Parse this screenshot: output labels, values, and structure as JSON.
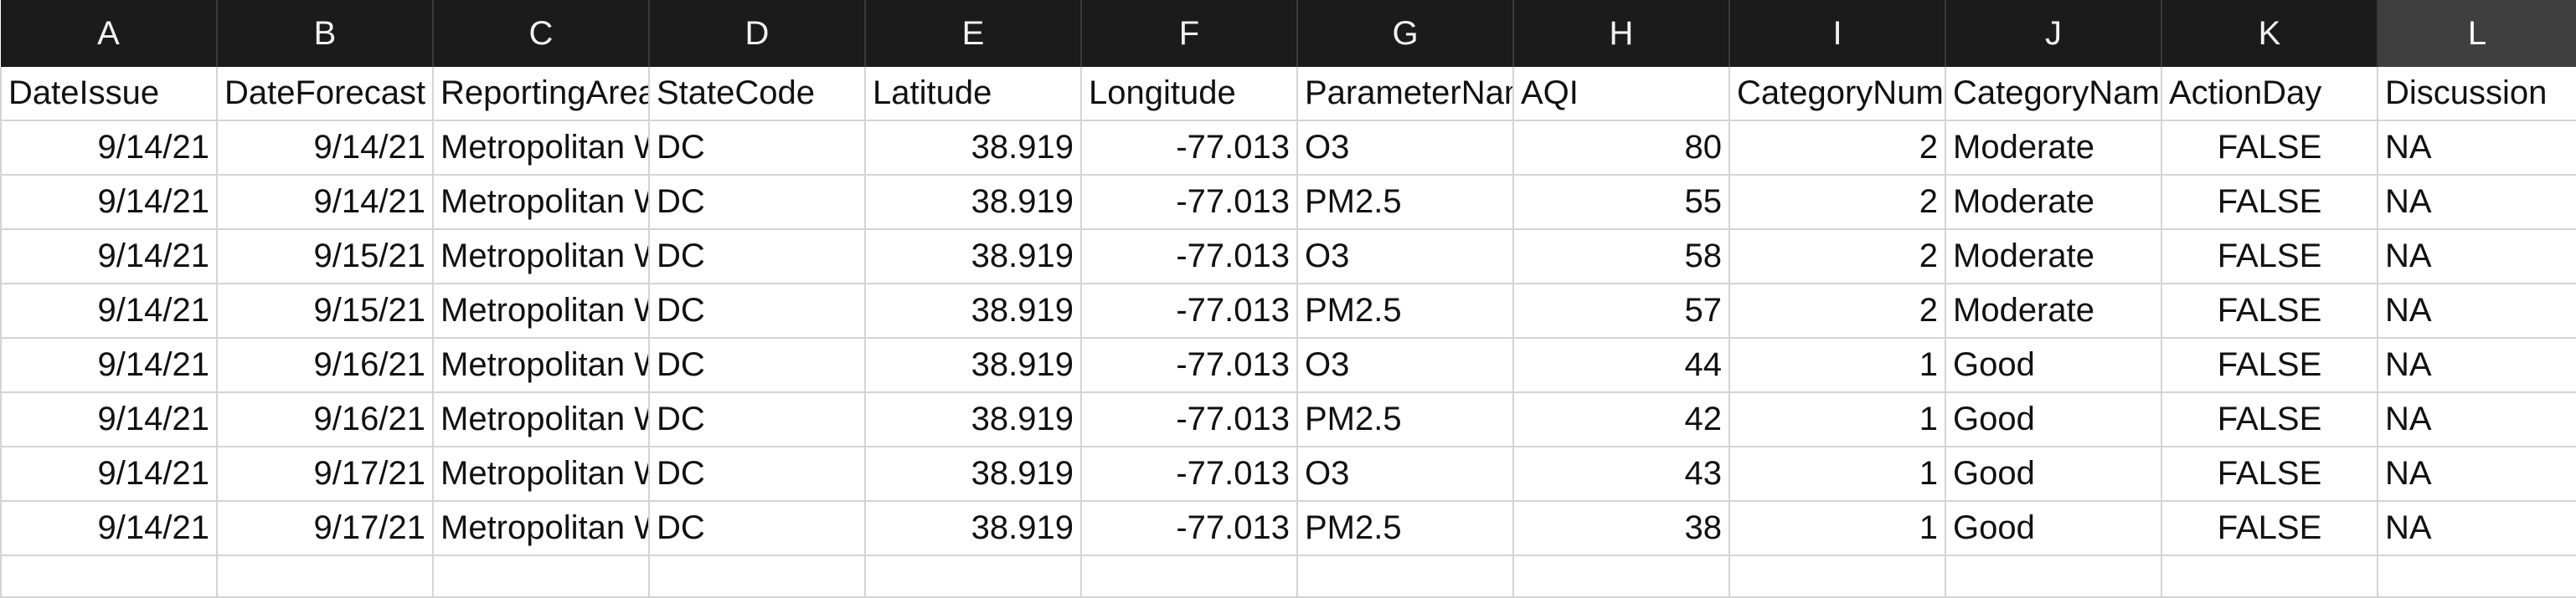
{
  "columns": [
    "A",
    "B",
    "C",
    "D",
    "E",
    "F",
    "G",
    "H",
    "I",
    "J",
    "K",
    "L"
  ],
  "selected_column": "L",
  "colors": {
    "header_bg": "#1b1b1b",
    "header_selected_bg": "#3f3f3f",
    "grid_line": "#d4d4d4"
  },
  "header_row": [
    "DateIssue",
    "DateForecast",
    "ReportingArea",
    "StateCode",
    "Latitude",
    "Longitude",
    "ParameterName",
    "AQI",
    "CategoryNumber",
    "CategoryName",
    "ActionDay",
    "Discussion"
  ],
  "rows": [
    [
      "9/14/21",
      "9/14/21",
      "Metropolitan Washington",
      "DC",
      "38.919",
      "-77.013",
      "O3",
      "80",
      "2",
      "Moderate",
      "FALSE",
      "NA"
    ],
    [
      "9/14/21",
      "9/14/21",
      "Metropolitan Washington",
      "DC",
      "38.919",
      "-77.013",
      "PM2.5",
      "55",
      "2",
      "Moderate",
      "FALSE",
      "NA"
    ],
    [
      "9/14/21",
      "9/15/21",
      "Metropolitan Washington",
      "DC",
      "38.919",
      "-77.013",
      "O3",
      "58",
      "2",
      "Moderate",
      "FALSE",
      "NA"
    ],
    [
      "9/14/21",
      "9/15/21",
      "Metropolitan Washington",
      "DC",
      "38.919",
      "-77.013",
      "PM2.5",
      "57",
      "2",
      "Moderate",
      "FALSE",
      "NA"
    ],
    [
      "9/14/21",
      "9/16/21",
      "Metropolitan Washington",
      "DC",
      "38.919",
      "-77.013",
      "O3",
      "44",
      "1",
      "Good",
      "FALSE",
      "NA"
    ],
    [
      "9/14/21",
      "9/16/21",
      "Metropolitan Washington",
      "DC",
      "38.919",
      "-77.013",
      "PM2.5",
      "42",
      "1",
      "Good",
      "FALSE",
      "NA"
    ],
    [
      "9/14/21",
      "9/17/21",
      "Metropolitan Washington",
      "DC",
      "38.919",
      "-77.013",
      "O3",
      "43",
      "1",
      "Good",
      "FALSE",
      "NA"
    ],
    [
      "9/14/21",
      "9/17/21",
      "Metropolitan Washington",
      "DC",
      "38.919",
      "-77.013",
      "PM2.5",
      "38",
      "1",
      "Good",
      "FALSE",
      "NA"
    ]
  ]
}
